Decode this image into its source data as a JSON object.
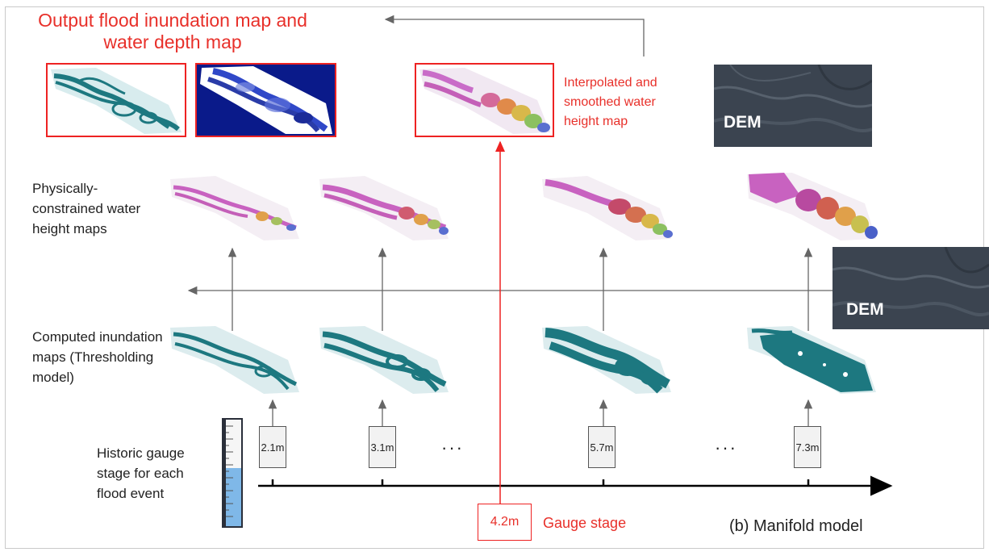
{
  "title": "Output flood inundation map and water depth map",
  "interp_label": "Interpolated and smoothed water height map",
  "dem_label": "DEM",
  "row_labels": {
    "height_maps": "Physically-constrained water height maps",
    "inundation_maps": "Computed inundation maps (Thresholding model)",
    "gauge": "Historic gauge stage for each flood event"
  },
  "gauge_stages": [
    "2.1m",
    "3.1m",
    "5.7m",
    "7.3m"
  ],
  "ellipsis": "···",
  "current_stage": {
    "value": "4.2m",
    "label": "Gauge stage"
  },
  "model_label": "(b) Manifold model",
  "colors": {
    "accent_red": "#e8302a",
    "teal": "#1d7880",
    "navy": "#0a1a8a",
    "dem": "#3b4450"
  }
}
